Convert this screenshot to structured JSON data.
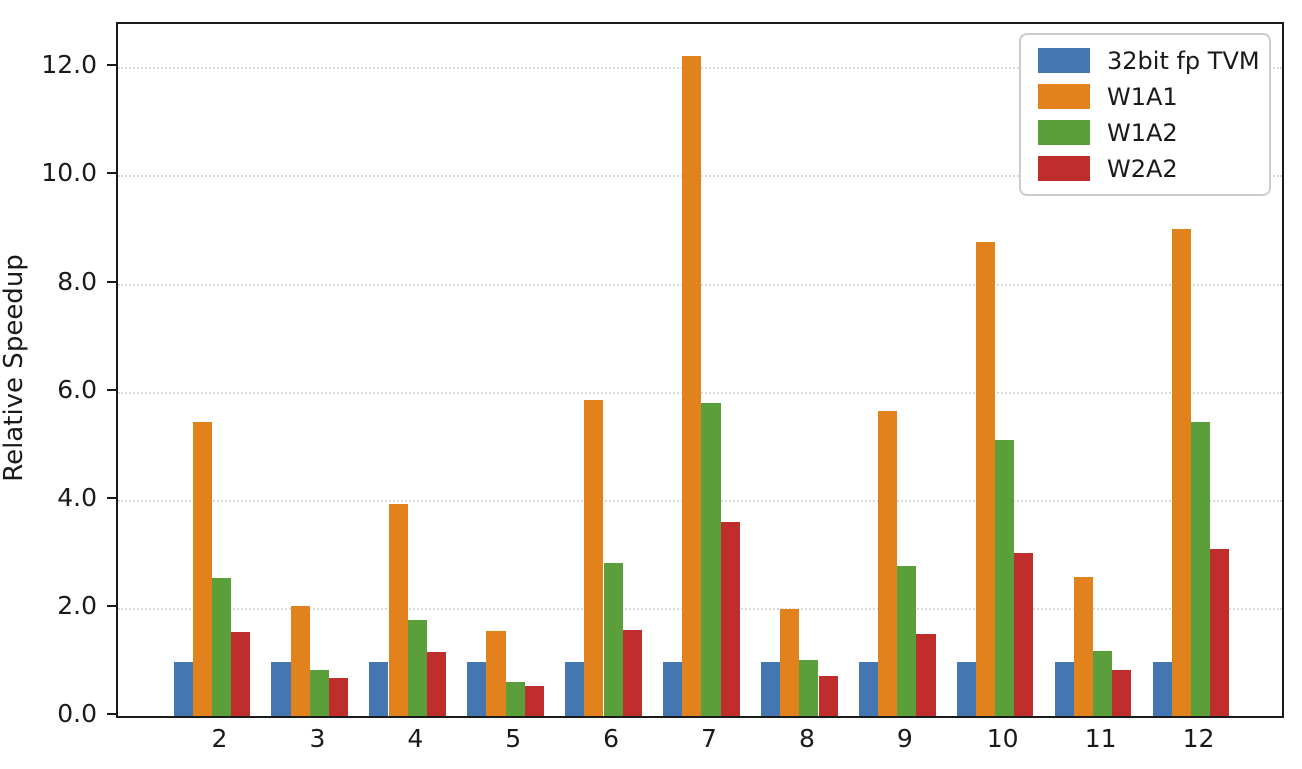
{
  "chart_data": {
    "type": "bar",
    "title": "",
    "xlabel": "",
    "ylabel": "Relative Speedup",
    "categories": [
      "2",
      "3",
      "4",
      "5",
      "6",
      "7",
      "8",
      "9",
      "10",
      "11",
      "12"
    ],
    "series": [
      {
        "name": "32bit fp TVM",
        "color": "#4477b1",
        "values": [
          1.0,
          1.0,
          1.0,
          1.0,
          1.0,
          1.0,
          1.0,
          1.0,
          1.0,
          1.0,
          1.0
        ]
      },
      {
        "name": "W1A1",
        "color": "#e2821d",
        "values": [
          5.43,
          2.04,
          3.93,
          1.57,
          5.85,
          12.2,
          1.98,
          5.64,
          8.76,
          2.58,
          9.01
        ]
      },
      {
        "name": "W1A2",
        "color": "#5b9f3a",
        "values": [
          2.56,
          0.85,
          1.78,
          0.62,
          2.83,
          5.79,
          1.04,
          2.78,
          5.11,
          1.21,
          5.44
        ]
      },
      {
        "name": "W2A2",
        "color": "#c02d2d",
        "values": [
          1.56,
          0.7,
          1.19,
          0.56,
          1.6,
          3.58,
          0.74,
          1.51,
          3.02,
          0.86,
          3.08
        ]
      }
    ],
    "yticks": [
      0.0,
      2.0,
      4.0,
      6.0,
      8.0,
      10.0,
      12.0
    ],
    "ytick_labels": [
      "0.0",
      "2.0",
      "4.0",
      "6.0",
      "8.0",
      "10.0",
      "12.0"
    ],
    "ylim": [
      0,
      12.8
    ],
    "grid": {
      "axis": "y",
      "style": "dotted",
      "color": "#d9d9d9"
    },
    "legend_position": "upper right",
    "axis_color": "#1a1a1a",
    "background_color": "#ffffff"
  }
}
